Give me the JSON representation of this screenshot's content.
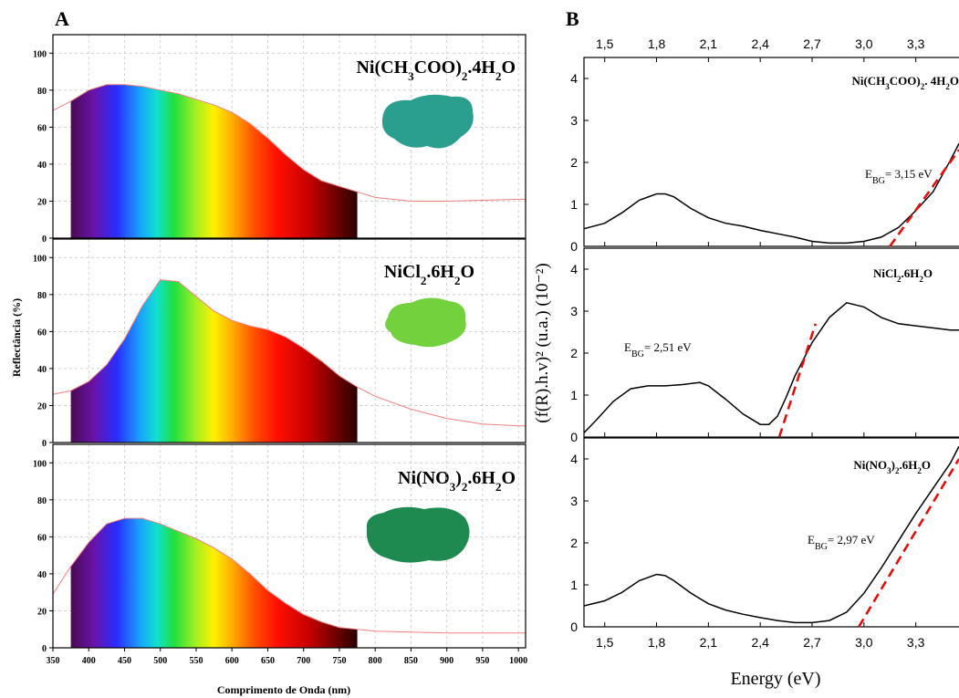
{
  "panel_a": {
    "letter": "A",
    "ylabel": "Reflectância (%)",
    "xlabel": "Comprimento de Onda (nm)",
    "x_ticks": [
      "350",
      "400",
      "450",
      "500",
      "550",
      "600",
      "650",
      "700",
      "750",
      "800",
      "850",
      "900",
      "950",
      "1000"
    ],
    "y_ticks": [
      "0",
      "20",
      "40",
      "60",
      "80",
      "100"
    ]
  },
  "panel_b": {
    "letter": "B",
    "ylabel": "(f(R).h.v)² (u.a.) (10⁻²)",
    "xlabel": "Energy (eV)",
    "x_ticks": [
      "1,5",
      "1,8",
      "2,1",
      "2,4",
      "2,7",
      "3,0",
      "3,3"
    ],
    "y_ticks": [
      "0",
      "1",
      "2",
      "3",
      "4"
    ]
  },
  "chart_data": [
    {
      "type": "area",
      "panel": "A",
      "title": "Ni(CH₃COO)₂.4H₂O",
      "xlabel": "Comprimento de Onda (nm)",
      "ylabel": "Reflectância (%)",
      "xlim": [
        350,
        1010
      ],
      "ylim": [
        0,
        110
      ],
      "x": [
        350,
        375,
        400,
        425,
        450,
        475,
        500,
        525,
        550,
        575,
        600,
        625,
        650,
        675,
        700,
        725,
        750,
        775,
        800,
        850,
        900,
        950,
        1000,
        1010
      ],
      "values": [
        69,
        74,
        80,
        83,
        83,
        82,
        80,
        78,
        75,
        72,
        68,
        62,
        54,
        45,
        37,
        31,
        28,
        25,
        22,
        20,
        20,
        20.5,
        21,
        21
      ]
    },
    {
      "type": "area",
      "panel": "A",
      "title": "NiCl₂.6H₂O",
      "xlabel": "Comprimento de Onda (nm)",
      "ylabel": "Reflectância (%)",
      "xlim": [
        350,
        1010
      ],
      "ylim": [
        0,
        110
      ],
      "x": [
        350,
        375,
        400,
        425,
        450,
        475,
        500,
        525,
        550,
        575,
        600,
        625,
        650,
        675,
        700,
        725,
        750,
        775,
        800,
        850,
        900,
        950,
        1000,
        1010
      ],
      "values": [
        26,
        28,
        33,
        42,
        56,
        74,
        88,
        87,
        79,
        71,
        66,
        63,
        61,
        57,
        51,
        44,
        36,
        30,
        25,
        18,
        13,
        10,
        9,
        9
      ]
    },
    {
      "type": "area",
      "panel": "A",
      "title": "Ni(NO₃)₂.6H₂O",
      "xlabel": "Comprimento de Onda (nm)",
      "ylabel": "Reflectância (%)",
      "xlim": [
        350,
        1010
      ],
      "ylim": [
        0,
        110
      ],
      "x": [
        350,
        375,
        400,
        425,
        450,
        475,
        500,
        525,
        550,
        575,
        600,
        625,
        650,
        675,
        700,
        725,
        750,
        775,
        800,
        850,
        900,
        950,
        1000,
        1010
      ],
      "values": [
        29,
        44,
        57,
        67,
        70,
        70,
        67,
        63,
        59,
        54,
        48,
        40,
        31,
        24,
        18,
        14,
        11,
        10,
        9,
        8.5,
        8,
        8,
        8,
        8
      ]
    },
    {
      "type": "line",
      "panel": "B",
      "title": "Ni(CH₃COO)₂. 4H₂O",
      "annotation": "E_BG= 3,15 eV",
      "annotation_main": "E",
      "annotation_sub": "BG",
      "annotation_rest": "= 3,15 eV",
      "xlabel": "Energy (eV)",
      "xlim": [
        1.38,
        3.55
      ],
      "ylim": [
        0,
        4.5
      ],
      "x": [
        1.38,
        1.5,
        1.6,
        1.7,
        1.8,
        1.85,
        1.9,
        2.0,
        2.1,
        2.2,
        2.3,
        2.4,
        2.5,
        2.6,
        2.7,
        2.8,
        2.9,
        3.0,
        3.1,
        3.2,
        3.3,
        3.4,
        3.5,
        3.55
      ],
      "values": [
        0.42,
        0.55,
        0.8,
        1.1,
        1.25,
        1.25,
        1.18,
        0.9,
        0.68,
        0.55,
        0.48,
        0.38,
        0.3,
        0.22,
        0.12,
        0.08,
        0.08,
        0.12,
        0.22,
        0.45,
        0.85,
        1.3,
        2.05,
        2.45
      ],
      "fit": {
        "x": [
          3.15,
          3.55
        ],
        "y": [
          0,
          2.3
        ]
      }
    },
    {
      "type": "line",
      "panel": "B",
      "title": "NiCl₂.6H₂O",
      "annotation": "E_BG= 2,51 eV",
      "annotation_main": "E",
      "annotation_sub": "BG",
      "annotation_rest": "= 2,51 eV",
      "xlabel": "Energy (eV)",
      "xlim": [
        1.38,
        3.55
      ],
      "ylim": [
        0,
        4.5
      ],
      "x": [
        1.38,
        1.45,
        1.55,
        1.65,
        1.75,
        1.85,
        1.95,
        2.05,
        2.1,
        2.2,
        2.3,
        2.4,
        2.45,
        2.5,
        2.55,
        2.6,
        2.7,
        2.8,
        2.9,
        3.0,
        3.1,
        3.2,
        3.3,
        3.4,
        3.5,
        3.55
      ],
      "values": [
        0.1,
        0.4,
        0.85,
        1.15,
        1.22,
        1.22,
        1.25,
        1.3,
        1.22,
        0.9,
        0.55,
        0.3,
        0.3,
        0.5,
        0.95,
        1.45,
        2.25,
        2.85,
        3.2,
        3.1,
        2.85,
        2.7,
        2.65,
        2.6,
        2.55,
        2.55
      ],
      "fit": {
        "x": [
          2.51,
          2.72
        ],
        "y": [
          0,
          2.7
        ]
      }
    },
    {
      "type": "line",
      "panel": "B",
      "title": "Ni(NO₃)₂.6H₂O",
      "annotation": "E_BG= 2,97 eV",
      "annotation_main": "E",
      "annotation_sub": "BG",
      "annotation_rest": "= 2,97 eV",
      "xlabel": "Energy (eV)",
      "xlim": [
        1.38,
        3.55
      ],
      "ylim": [
        0,
        4.5
      ],
      "x": [
        1.38,
        1.5,
        1.6,
        1.7,
        1.8,
        1.85,
        1.9,
        2.0,
        2.1,
        2.2,
        2.3,
        2.4,
        2.5,
        2.6,
        2.7,
        2.8,
        2.9,
        3.0,
        3.1,
        3.2,
        3.3,
        3.4,
        3.5,
        3.55
      ],
      "values": [
        0.5,
        0.62,
        0.82,
        1.1,
        1.25,
        1.22,
        1.1,
        0.8,
        0.55,
        0.4,
        0.3,
        0.22,
        0.15,
        0.1,
        0.1,
        0.15,
        0.35,
        0.8,
        1.4,
        2.05,
        2.7,
        3.3,
        3.9,
        4.3
      ],
      "fit": {
        "x": [
          2.97,
          3.55
        ],
        "y": [
          0,
          4.0
        ]
      }
    }
  ]
}
